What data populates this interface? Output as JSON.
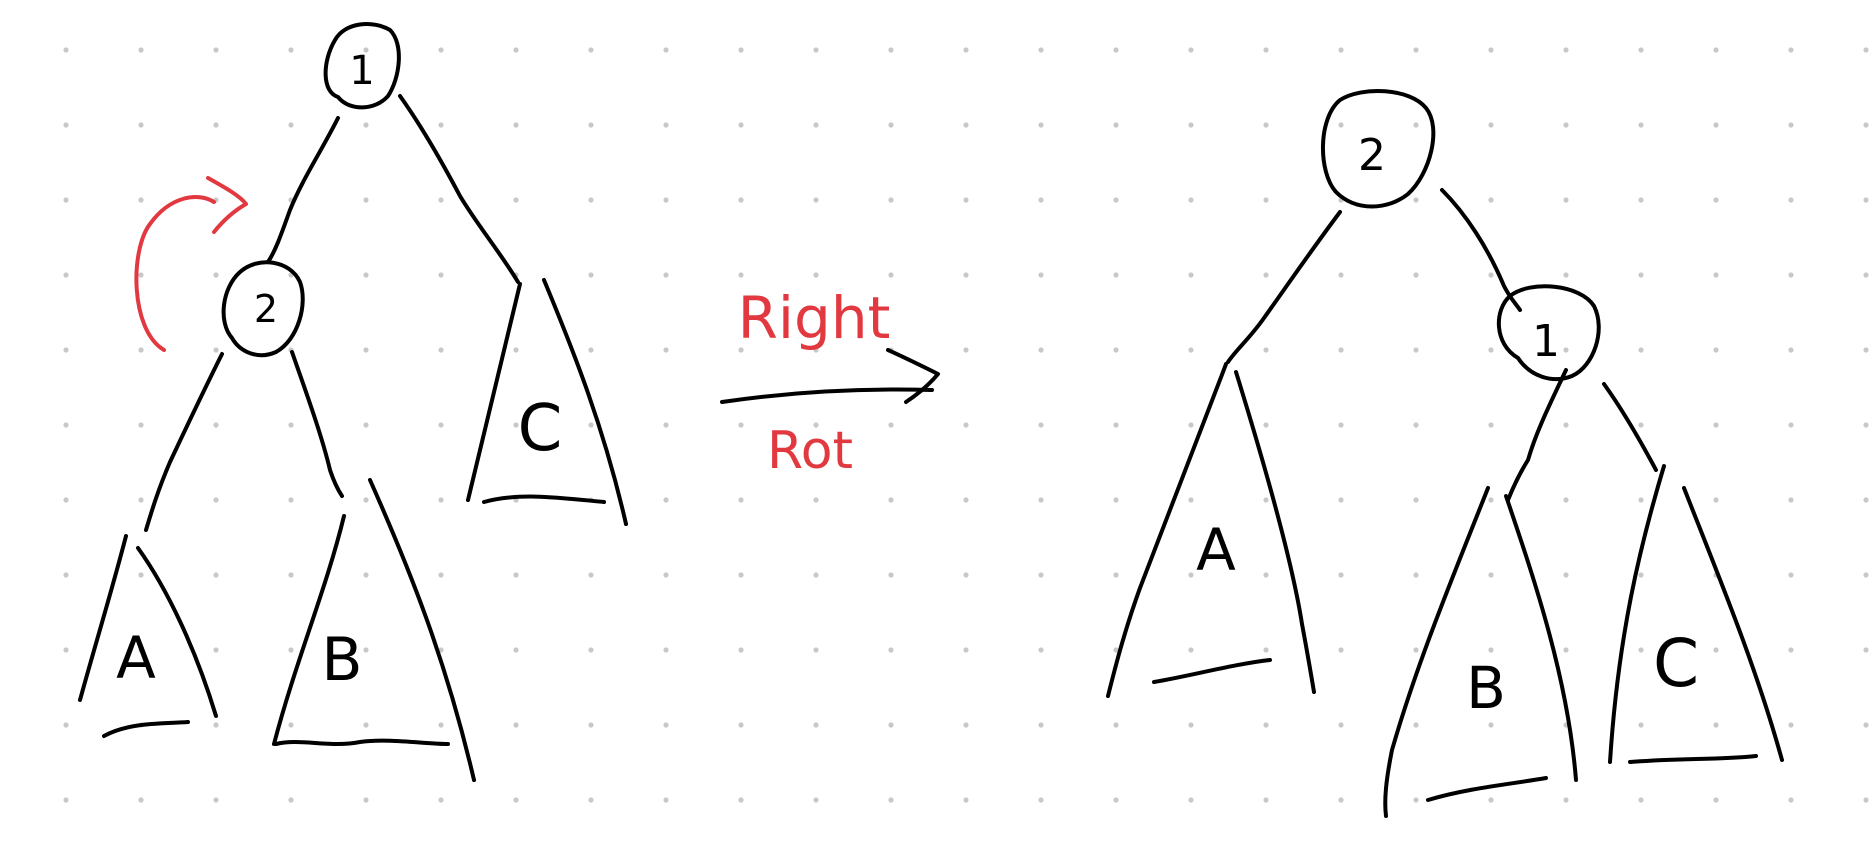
{
  "colors": {
    "ink": "#000000",
    "accent": "#e1393f",
    "grid_dot": "#c8c8c8",
    "background": "#ffffff"
  },
  "before_tree": {
    "root": "1",
    "left_child": "2",
    "subtrees": [
      "A",
      "B",
      "C"
    ]
  },
  "operation": {
    "line1": "Right",
    "line2": "Rot"
  },
  "after_tree": {
    "root": "2",
    "right_child": "1",
    "subtrees": [
      "A",
      "B",
      "C"
    ]
  }
}
